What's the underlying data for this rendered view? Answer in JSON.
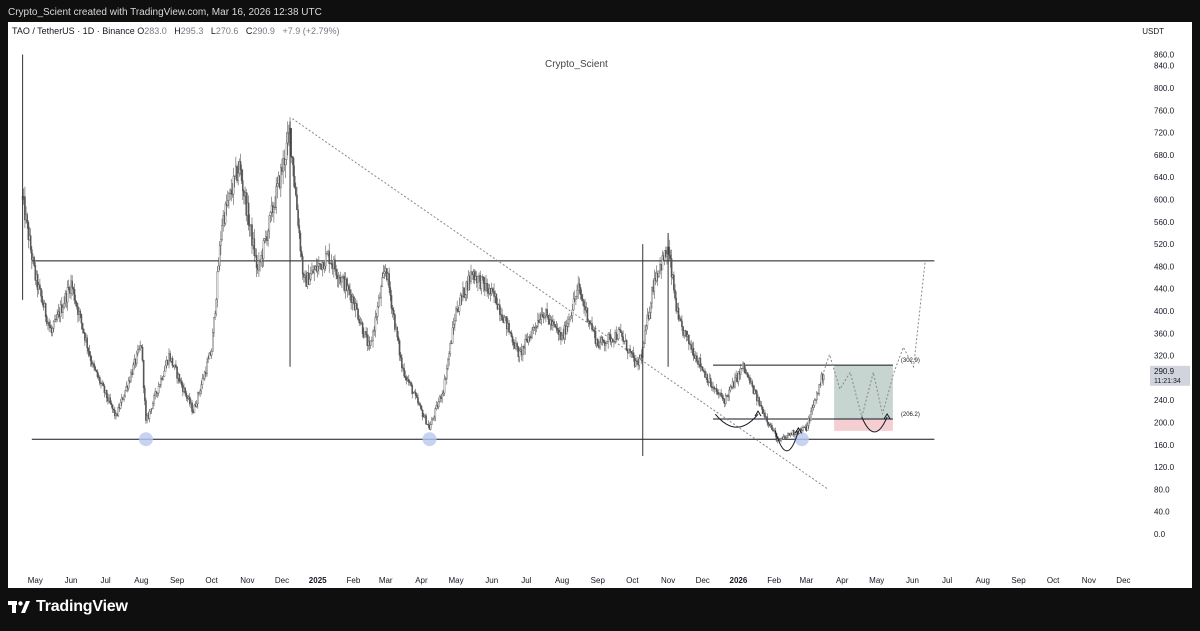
{
  "header": {
    "caption": "Crypto_Scient created with TradingView.com, Mar 16, 2026 12:38 UTC"
  },
  "legend": {
    "symbol": "TAO / TetherUS · 1D · Binance",
    "open_label": "O",
    "open": "283.0",
    "high_label": "H",
    "high": "295.3",
    "low_label": "L",
    "low": "270.6",
    "close_label": "C",
    "close": "290.9",
    "change": "+7.9 (+2.79%)"
  },
  "watermark": "Crypto_Scient",
  "currency": "USDT",
  "footer": {
    "brand": "TradingView"
  },
  "price_tag": {
    "price": "290.9",
    "countdown": "11:21:34"
  },
  "colors": {
    "candle": "#555555",
    "ink": "#131722",
    "dotted": "#888888",
    "zone_green": "#b9cbc4",
    "zone_red": "#f3c2c5",
    "touch_blue": "#b8c8f0"
  },
  "chart_data": {
    "type": "candlestick",
    "symbol": "TAO / TetherUS",
    "interval": "1D",
    "exchange": "Binance",
    "y_ticks": [
      "860.0",
      "840.0",
      "800.0",
      "760.0",
      "720.0",
      "680.0",
      "640.0",
      "600.0",
      "560.0",
      "520.0",
      "480.0",
      "440.0",
      "400.0",
      "360.0",
      "320.0",
      "280.0",
      "240.0",
      "200.0",
      "160.0",
      "120.0",
      "80.0",
      "40.0",
      "0.0"
    ],
    "x_ticks": [
      "May",
      "Jun",
      "Jul",
      "Aug",
      "Sep",
      "Oct",
      "Nov",
      "Dec",
      "2025",
      "Feb",
      "Mar",
      "Apr",
      "May",
      "Jun",
      "Jul",
      "Aug",
      "Sep",
      "Oct",
      "Nov",
      "Dec",
      "2026",
      "Feb",
      "Mar",
      "Apr",
      "May",
      "Jun",
      "Jul",
      "Aug",
      "Sep",
      "Oct",
      "Nov",
      "Dec"
    ],
    "ylim": [
      0,
      865
    ],
    "price_path": [
      [
        "2024-04-20",
        600
      ],
      [
        "2024-05-01",
        460
      ],
      [
        "2024-05-15",
        360
      ],
      [
        "2024-06-01",
        450
      ],
      [
        "2024-06-20",
        300
      ],
      [
        "2024-07-10",
        210
      ],
      [
        "2024-08-01",
        340
      ],
      [
        "2024-08-05",
        200
      ],
      [
        "2024-08-25",
        320
      ],
      [
        "2024-09-15",
        220
      ],
      [
        "2024-10-01",
        330
      ],
      [
        "2024-10-10",
        560
      ],
      [
        "2024-10-25",
        660
      ],
      [
        "2024-11-10",
        470
      ],
      [
        "2024-11-25",
        600
      ],
      [
        "2024-12-08",
        720
      ],
      [
        "2024-12-20",
        450
      ],
      [
        "2025-01-10",
        500
      ],
      [
        "2025-02-01",
        420
      ],
      [
        "2025-02-15",
        330
      ],
      [
        "2025-03-01",
        480
      ],
      [
        "2025-03-15",
        300
      ],
      [
        "2025-04-01",
        220
      ],
      [
        "2025-04-08",
        190
      ],
      [
        "2025-04-20",
        260
      ],
      [
        "2025-05-01",
        400
      ],
      [
        "2025-05-15",
        470
      ],
      [
        "2025-06-05",
        420
      ],
      [
        "2025-06-25",
        320
      ],
      [
        "2025-07-15",
        400
      ],
      [
        "2025-08-01",
        350
      ],
      [
        "2025-08-15",
        440
      ],
      [
        "2025-09-01",
        340
      ],
      [
        "2025-09-20",
        360
      ],
      [
        "2025-10-05",
        300
      ],
      [
        "2025-10-10",
        330
      ],
      [
        "2025-10-20",
        460
      ],
      [
        "2025-11-01",
        510
      ],
      [
        "2025-11-10",
        380
      ],
      [
        "2025-11-25",
        320
      ],
      [
        "2025-12-10",
        260
      ],
      [
        "2025-12-20",
        240
      ],
      [
        "2026-01-05",
        300
      ],
      [
        "2026-01-20",
        230
      ],
      [
        "2026-02-05",
        165
      ],
      [
        "2026-02-15",
        180
      ],
      [
        "2026-03-01",
        190
      ],
      [
        "2026-03-16",
        290.9
      ]
    ],
    "spikes": [
      [
        "2024-04-20",
        860,
        420
      ],
      [
        "2024-12-08",
        740,
        300
      ],
      [
        "2025-10-10",
        520,
        140
      ],
      [
        "2025-11-01",
        540,
        300
      ]
    ],
    "support_level": 170,
    "resistance_level": 490,
    "downtrend_line": {
      "from": [
        "2024-12-10",
        745
      ],
      "to": [
        "2026-03-20",
        80
      ]
    },
    "range_high_label": "(302.9)",
    "range_high": 302.9,
    "range_low_label": "(206.2)",
    "range_low": 206.2,
    "zone_green": {
      "from": "2026-03-25",
      "to": "2026-05-15",
      "low": 206,
      "high": 303
    },
    "zone_red": {
      "from": "2026-03-25",
      "to": "2026-05-15",
      "low": 185,
      "high": 206
    },
    "projection_path": [
      [
        "2026-03-16",
        291
      ],
      [
        "2026-03-21",
        322
      ],
      [
        "2026-03-30",
        260
      ],
      [
        "2026-04-08",
        290
      ],
      [
        "2026-04-18",
        210
      ],
      [
        "2026-04-28",
        290
      ],
      [
        "2026-05-06",
        215
      ],
      [
        "2026-05-16",
        290
      ],
      [
        "2026-05-24",
        335
      ],
      [
        "2026-06-02",
        300
      ],
      [
        "2026-06-12",
        490
      ]
    ],
    "support_touches": [
      [
        "2024-08-05",
        170
      ],
      [
        "2025-04-08",
        170
      ],
      [
        "2026-02-25",
        170
      ]
    ],
    "current_price": 290.9
  }
}
